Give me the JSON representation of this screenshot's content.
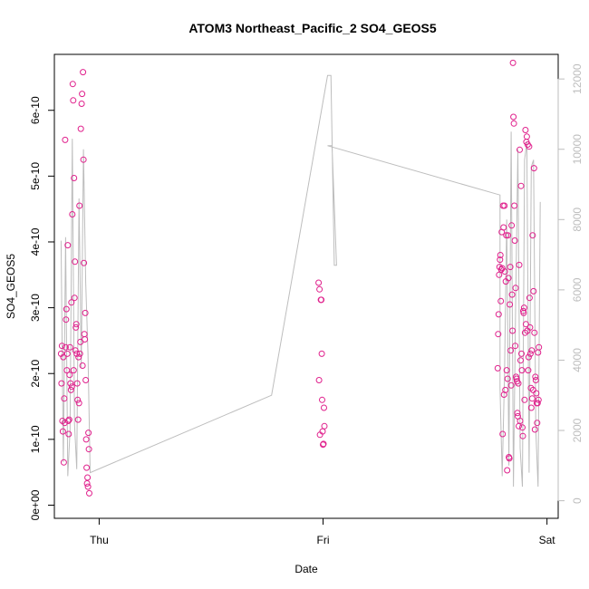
{
  "chart_data": {
    "type": "scatter",
    "title": "ATOM3 Northeast_Pacific_2 SO4_GEOS5",
    "xlabel": "Date",
    "ylabel": "SO4_GEOS5",
    "x_ticks": [
      "Thu",
      "Fri",
      "Sat"
    ],
    "y_ticks": [
      "0e+00",
      "1e-10",
      "2e-10",
      "3e-10",
      "4e-10",
      "5e-10",
      "6e-10"
    ],
    "y2_ticks": [
      "0",
      "2000",
      "4000",
      "6000",
      "8000",
      "10000",
      "12000"
    ],
    "xlim": [
      -0.2,
      2.05
    ],
    "ylim": [
      -2e-11,
      6.85e-10
    ],
    "y2lim": [
      -500,
      12700
    ],
    "grid": false,
    "legend": "none",
    "colors": {
      "points": "#e0208c",
      "altitude_line": "#bdbdbd",
      "axis": "#000000",
      "right_axis": "#bdbdbd"
    },
    "series": [
      {
        "role": "points",
        "points": [
          [
            -0.17,
            2.3e-10
          ],
          [
            -0.168,
            1.85e-10
          ],
          [
            -0.166,
            2.42e-10
          ],
          [
            -0.164,
            1.28e-10
          ],
          [
            -0.162,
            1.12e-10
          ],
          [
            -0.16,
            2.25e-10
          ],
          [
            -0.158,
            6.5e-11
          ],
          [
            -0.156,
            1.62e-10
          ],
          [
            -0.154,
            1.25e-10
          ],
          [
            -0.152,
            5.55e-10
          ],
          [
            -0.15,
            2.4e-10
          ],
          [
            -0.148,
            2.82e-10
          ],
          [
            -0.146,
            2.98e-10
          ],
          [
            -0.144,
            2.05e-10
          ],
          [
            -0.142,
            2.3e-10
          ],
          [
            -0.14,
            3.95e-10
          ],
          [
            -0.138,
            1.28e-10
          ],
          [
            -0.136,
            1.08e-10
          ],
          [
            -0.134,
            1.3e-10
          ],
          [
            -0.132,
            1.98e-10
          ],
          [
            -0.13,
            2.4e-10
          ],
          [
            -0.128,
            1.85e-10
          ],
          [
            -0.126,
            1.75e-10
          ],
          [
            -0.124,
            3.08e-10
          ],
          [
            -0.122,
            1.8e-10
          ],
          [
            -0.12,
            4.42e-10
          ],
          [
            -0.118,
            6.4e-10
          ],
          [
            -0.116,
            6.15e-10
          ],
          [
            -0.114,
            2.05e-10
          ],
          [
            -0.112,
            4.97e-10
          ],
          [
            -0.11,
            3.15e-10
          ],
          [
            -0.108,
            3.7e-10
          ],
          [
            -0.106,
            2.35e-10
          ],
          [
            -0.104,
            2.7e-10
          ],
          [
            -0.102,
            2.75e-10
          ],
          [
            -0.1,
            2.3e-10
          ],
          [
            -0.098,
            1.85e-10
          ],
          [
            -0.096,
            1.6e-10
          ],
          [
            -0.094,
            1.3e-10
          ],
          [
            -0.092,
            2.25e-10
          ],
          [
            -0.09,
            1.55e-10
          ],
          [
            -0.088,
            4.55e-10
          ],
          [
            -0.086,
            2.3e-10
          ],
          [
            -0.084,
            2.48e-10
          ],
          [
            -0.082,
            5.72e-10
          ],
          [
            -0.078,
            6.1e-10
          ],
          [
            -0.076,
            6.25e-10
          ],
          [
            -0.074,
            2.12e-10
          ],
          [
            -0.072,
            6.58e-10
          ],
          [
            -0.07,
            5.25e-10
          ],
          [
            -0.068,
            3.68e-10
          ],
          [
            -0.066,
            2.6e-10
          ],
          [
            -0.064,
            2.52e-10
          ],
          [
            -0.062,
            2.92e-10
          ],
          [
            -0.06,
            1.9e-10
          ],
          [
            -0.058,
            1e-10
          ],
          [
            -0.056,
            5.7e-11
          ],
          [
            -0.054,
            3.3e-11
          ],
          [
            -0.052,
            4.2e-11
          ],
          [
            -0.05,
            2.8e-11
          ],
          [
            -0.048,
            1.1e-10
          ],
          [
            -0.046,
            8.5e-11
          ],
          [
            -0.044,
            1.8e-11
          ],
          [
            0.98,
            3.38e-10
          ],
          [
            0.982,
            1.9e-10
          ],
          [
            0.984,
            3.28e-10
          ],
          [
            0.986,
            1.07e-10
          ],
          [
            0.99,
            3.12e-10
          ],
          [
            0.992,
            3.12e-10
          ],
          [
            0.994,
            2.3e-10
          ],
          [
            0.996,
            1.6e-10
          ],
          [
            0.998,
            1.12e-10
          ],
          [
            1.0,
            9.2e-11
          ],
          [
            1.002,
            9.3e-11
          ],
          [
            1.004,
            1.48e-10
          ],
          [
            1.006,
            1.2e-10
          ],
          [
            1.78,
            2.08e-10
          ],
          [
            1.782,
            2.6e-10
          ],
          [
            1.784,
            2.9e-10
          ],
          [
            1.786,
            3.5e-10
          ],
          [
            1.788,
            3.62e-10
          ],
          [
            1.79,
            3.73e-10
          ],
          [
            1.792,
            3.8e-10
          ],
          [
            1.794,
            3.1e-10
          ],
          [
            1.796,
            3.58e-10
          ],
          [
            1.798,
            4.15e-10
          ],
          [
            1.8,
            3.6e-10
          ],
          [
            1.802,
            1.08e-10
          ],
          [
            1.804,
            4.55e-10
          ],
          [
            1.806,
            4.22e-10
          ],
          [
            1.808,
            1.68e-10
          ],
          [
            1.81,
            4.55e-10
          ],
          [
            1.812,
            3.55e-10
          ],
          [
            1.814,
            1.75e-10
          ],
          [
            1.816,
            3.4e-10
          ],
          [
            1.818,
            4.1e-10
          ],
          [
            1.82,
            2.05e-10
          ],
          [
            1.822,
            5.3e-11
          ],
          [
            1.824,
            1.92e-10
          ],
          [
            1.826,
            4.1e-10
          ],
          [
            1.828,
            3.45e-10
          ],
          [
            1.83,
            7.3e-11
          ],
          [
            1.832,
            7.1e-11
          ],
          [
            1.834,
            3.05e-10
          ],
          [
            1.836,
            3.62e-10
          ],
          [
            1.838,
            2.35e-10
          ],
          [
            1.84,
            1.82e-10
          ],
          [
            1.842,
            4.25e-10
          ],
          [
            1.844,
            3.2e-10
          ],
          [
            1.846,
            2.65e-10
          ],
          [
            1.848,
            6.72e-10
          ],
          [
            1.85,
            5.9e-10
          ],
          [
            1.852,
            5.8e-10
          ],
          [
            1.854,
            4.55e-10
          ],
          [
            1.856,
            4.02e-10
          ],
          [
            1.858,
            2.42e-10
          ],
          [
            1.86,
            3.3e-10
          ],
          [
            1.862,
            1.95e-10
          ],
          [
            1.864,
            1.92e-10
          ],
          [
            1.866,
            1.88e-10
          ],
          [
            1.868,
            1.4e-10
          ],
          [
            1.87,
            1.35e-10
          ],
          [
            1.872,
            1.85e-10
          ],
          [
            1.874,
            1.2e-10
          ],
          [
            1.876,
            3.65e-10
          ],
          [
            1.878,
            5.4e-10
          ],
          [
            1.88,
            1.28e-10
          ],
          [
            1.882,
            2.2e-10
          ],
          [
            1.884,
            4.85e-10
          ],
          [
            1.886,
            2.3e-10
          ],
          [
            1.888,
            2.05e-10
          ],
          [
            1.89,
            1.18e-10
          ],
          [
            1.892,
            1.05e-10
          ],
          [
            1.894,
            2.95e-10
          ],
          [
            1.896,
            2.92e-10
          ],
          [
            1.898,
            3e-10
          ],
          [
            1.9,
            1.6e-10
          ],
          [
            1.902,
            2.62e-10
          ],
          [
            1.904,
            5.7e-10
          ],
          [
            1.906,
            2.75e-10
          ],
          [
            1.908,
            5.52e-10
          ],
          [
            1.91,
            5.6e-10
          ],
          [
            1.912,
            2.65e-10
          ],
          [
            1.914,
            5.48e-10
          ],
          [
            1.916,
            2.05e-10
          ],
          [
            1.918,
            2.25e-10
          ],
          [
            1.92,
            5.45e-10
          ],
          [
            1.922,
            3.15e-10
          ],
          [
            1.924,
            2.7e-10
          ],
          [
            1.926,
            2.3e-10
          ],
          [
            1.928,
            1.78e-10
          ],
          [
            1.93,
            1.48e-10
          ],
          [
            1.932,
            2.35e-10
          ],
          [
            1.934,
            1.62e-10
          ],
          [
            1.936,
            4.1e-10
          ],
          [
            1.938,
            1.75e-10
          ],
          [
            1.94,
            3.25e-10
          ],
          [
            1.942,
            5.12e-10
          ],
          [
            1.944,
            2.62e-10
          ],
          [
            1.946,
            1.15e-10
          ],
          [
            1.948,
            1.95e-10
          ],
          [
            1.95,
            1.9e-10
          ],
          [
            1.952,
            1.7e-10
          ],
          [
            1.954,
            1.55e-10
          ],
          [
            1.956,
            1.25e-10
          ],
          [
            1.958,
            1.55e-10
          ],
          [
            1.96,
            2.32e-10
          ],
          [
            1.962,
            1.6e-10
          ],
          [
            1.964,
            2.4e-10
          ]
        ]
      },
      {
        "role": "altitude_line",
        "points": [
          [
            -0.17,
            7400
          ],
          [
            -0.16,
            1100
          ],
          [
            -0.15,
            7500
          ],
          [
            -0.14,
            700
          ],
          [
            -0.13,
            2000
          ],
          [
            -0.12,
            10300
          ],
          [
            -0.11,
            2200
          ],
          [
            -0.1,
            900
          ],
          [
            -0.09,
            8600
          ],
          [
            -0.08,
            3800
          ],
          [
            -0.07,
            10000
          ],
          [
            -0.06,
            6200
          ],
          [
            -0.05,
            4200
          ],
          [
            -0.04,
            800
          ],
          [
            0.77,
            3000
          ],
          [
            1.02,
            12100
          ],
          [
            1.035,
            12100
          ],
          [
            1.05,
            6700
          ],
          [
            1.06,
            6700
          ],
          [
            1.04,
            10100
          ],
          [
            1.02,
            10100
          ],
          [
            1.79,
            8700
          ],
          [
            1.79,
            3200
          ],
          [
            1.8,
            700
          ],
          [
            1.81,
            3500
          ],
          [
            1.82,
            8000
          ],
          [
            1.83,
            1000
          ],
          [
            1.84,
            10500
          ],
          [
            1.85,
            400
          ],
          [
            1.86,
            5500
          ],
          [
            1.87,
            10000
          ],
          [
            1.88,
            1500
          ],
          [
            1.89,
            400
          ],
          [
            1.9,
            9700
          ],
          [
            1.91,
            10200
          ],
          [
            1.92,
            800
          ],
          [
            1.93,
            9500
          ],
          [
            1.94,
            9700
          ],
          [
            1.95,
            2000
          ],
          [
            1.96,
            400
          ],
          [
            1.97,
            8500
          ]
        ]
      }
    ]
  }
}
